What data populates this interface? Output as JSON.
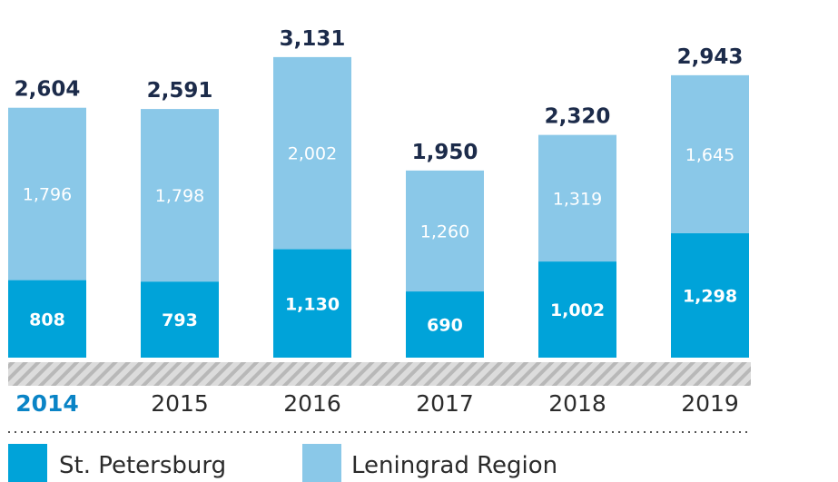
{
  "chart_data": {
    "type": "bar",
    "stacked": true,
    "categories": [
      "2014",
      "2015",
      "2016",
      "2017",
      "2018",
      "2019"
    ],
    "highlight_category": "2014",
    "series": [
      {
        "name": "St. Petersburg",
        "color": "#00a3d9",
        "values": [
          808,
          793,
          1130,
          690,
          1002,
          1298
        ],
        "labels": [
          "808",
          "793",
          "1,130",
          "690",
          "1,002",
          "1,298"
        ]
      },
      {
        "name": "Leningrad Region",
        "color": "#8ac8e8",
        "values": [
          1796,
          1798,
          2002,
          1260,
          1319,
          1645
        ],
        "labels": [
          "1,796",
          "1,798",
          "2,002",
          "1,260",
          "1,319",
          "1,645"
        ]
      }
    ],
    "totals": [
      2604,
      2591,
      3131,
      1950,
      2320,
      2943
    ],
    "total_labels": [
      "2,604",
      "2,591",
      "3,131",
      "1,950",
      "2,320",
      "2,943"
    ],
    "ylim": [
      0,
      3131
    ],
    "legend_position": "bottom-left",
    "grid": false
  }
}
